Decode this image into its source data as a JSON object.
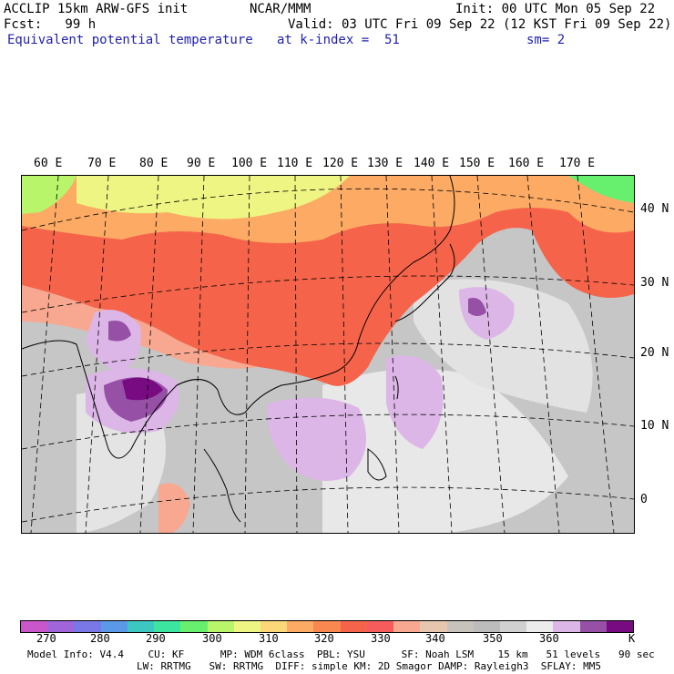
{
  "header": {
    "model": "ACCLIP 15km ARW-GFS init",
    "org": "NCAR/MMM",
    "init": "Init: 00 UTC Mon 05 Sep 22",
    "fcst": "Fcst:   99 h",
    "valid": "Valid: 03 UTC Fri 09 Sep 22 (12 KST Fri 09 Sep 22)",
    "field": "Equivalent potential temperature",
    "level": "at k-index =  51",
    "smooth": "sm= 2"
  },
  "map": {
    "lon_labels": [
      "60 E",
      "70 E",
      "80 E",
      "90 E",
      "100 E",
      "110 E",
      "120 E",
      "130 E",
      "140 E",
      "150 E",
      "160 E",
      "170 E"
    ],
    "lat_labels": [
      "40 N",
      "30 N",
      "20 N",
      "10 N",
      "0"
    ]
  },
  "colorbar": {
    "unit": "K",
    "ticks": [
      "270",
      "280",
      "290",
      "300",
      "310",
      "320",
      "330",
      "340",
      "350",
      "360"
    ],
    "colors": [
      "#c957c9",
      "#a065db",
      "#7a78e6",
      "#5c98e8",
      "#3cc8c0",
      "#3ce6a0",
      "#66f06e",
      "#b8f56a",
      "#eef582",
      "#fcd77a",
      "#fcaa64",
      "#f98850",
      "#f5644a",
      "#f75c5c",
      "#f8a890",
      "#e6c6ae",
      "#c8c2bc",
      "#bcbcbc",
      "#d0d0d0",
      "#ececec",
      "#dcb6e6",
      "#9650a6",
      "#780a82"
    ]
  },
  "footer": {
    "line1": "Model Info: V4.4    CU: KF      MP: WDM 6class  PBL: YSU      SF: Noah LSM    15 km   51 levels   90 sec",
    "line2": "LW: RRTMG   SW: RRTMG  DIFF: simple KM: 2D Smagor DAMP: Rayleigh3  SFLAY: MM5"
  }
}
